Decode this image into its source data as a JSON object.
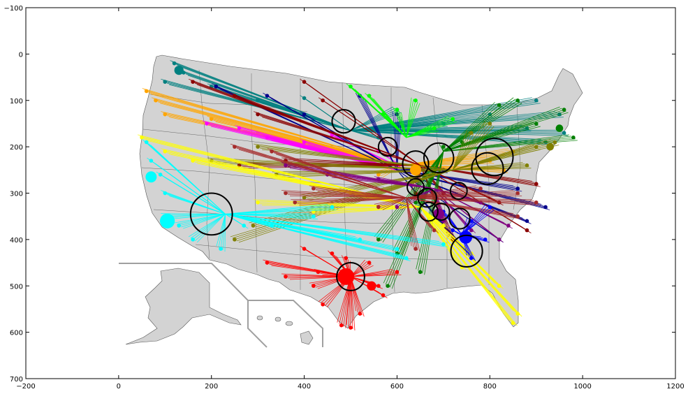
{
  "chart_data": {
    "type": "scatter",
    "title": "",
    "xlabel": "",
    "ylabel": "",
    "xlim": [
      -200,
      1200
    ],
    "ylim": [
      700,
      -100
    ],
    "y_inverted": true,
    "grid": false,
    "x_ticks": [
      -200,
      0,
      200,
      400,
      600,
      800,
      1000,
      1200
    ],
    "y_ticks": [
      -100,
      0,
      100,
      200,
      300,
      400,
      500,
      600,
      700
    ],
    "colors": {
      "map_fill": "#d3d3d3",
      "map_edge": "#555555",
      "inset_frame": "#a0a0a0",
      "hub_ring": "#000000"
    },
    "hubs": [
      {
        "x": 485,
        "y": 145,
        "r": 25
      },
      {
        "x": 580,
        "y": 200,
        "r": 20
      },
      {
        "x": 640,
        "y": 237,
        "r": 28
      },
      {
        "x": 690,
        "y": 224,
        "r": 32
      },
      {
        "x": 810,
        "y": 222,
        "r": 40
      },
      {
        "x": 795,
        "y": 247,
        "r": 34
      },
      {
        "x": 640,
        "y": 287,
        "r": 18
      },
      {
        "x": 733,
        "y": 295,
        "r": 18
      },
      {
        "x": 665,
        "y": 310,
        "r": 20
      },
      {
        "x": 200,
        "y": 345,
        "r": 45
      },
      {
        "x": 668,
        "y": 340,
        "r": 20
      },
      {
        "x": 695,
        "y": 340,
        "r": 18
      },
      {
        "x": 735,
        "y": 355,
        "r": 22
      },
      {
        "x": 750,
        "y": 425,
        "r": 34
      },
      {
        "x": 500,
        "y": 480,
        "r": 30
      }
    ],
    "series": [
      {
        "color": "#008080",
        "hub": [
          500,
          165
        ],
        "targets": [
          [
            120,
            20
          ],
          [
            140,
            40
          ],
          [
            100,
            60
          ],
          [
            200,
            70
          ],
          [
            300,
            100
          ],
          [
            600,
            120
          ],
          [
            800,
            130
          ],
          [
            900,
            100
          ],
          [
            950,
            130
          ],
          [
            960,
            170
          ],
          [
            920,
            190
          ],
          [
            880,
            160
          ],
          [
            700,
            150
          ],
          [
            560,
            180
          ],
          [
            400,
            95
          ]
        ]
      },
      {
        "color": "#ffa500",
        "hub": [
          610,
          240
        ],
        "targets": [
          [
            60,
            80
          ],
          [
            80,
            100
          ],
          [
            100,
            130
          ],
          [
            200,
            140
          ],
          [
            300,
            170
          ],
          [
            400,
            200
          ],
          [
            800,
            230
          ],
          [
            850,
            210
          ],
          [
            830,
            250
          ],
          [
            560,
            260
          ]
        ]
      },
      {
        "color": "#ff00ff",
        "hub": [
          640,
          260
        ],
        "targets": [
          [
            190,
            150
          ],
          [
            260,
            160
          ],
          [
            320,
            180
          ],
          [
            400,
            190
          ],
          [
            460,
            175
          ],
          [
            560,
            210
          ]
        ]
      },
      {
        "color": "#00008b",
        "hub": [
          600,
          250
        ],
        "targets": [
          [
            210,
            70
          ],
          [
            320,
            90
          ],
          [
            400,
            130
          ],
          [
            520,
            90
          ],
          [
            600,
            130
          ],
          [
            700,
            250
          ],
          [
            860,
            290
          ],
          [
            880,
            360
          ],
          [
            820,
            400
          ],
          [
            760,
            440
          ],
          [
            920,
            330
          ]
        ]
      },
      {
        "color": "#8b0000",
        "hub": [
          650,
          240
        ],
        "targets": [
          [
            160,
            60
          ],
          [
            250,
            90
          ],
          [
            300,
            130
          ],
          [
            400,
            60
          ],
          [
            440,
            100
          ],
          [
            360,
            230
          ],
          [
            260,
            240
          ],
          [
            700,
            300
          ],
          [
            820,
            320
          ],
          [
            900,
            280
          ],
          [
            880,
            380
          ],
          [
            640,
            300
          ],
          [
            720,
            400
          ]
        ]
      },
      {
        "color": "#00ff00",
        "hub": [
          620,
          180
        ],
        "targets": [
          [
            500,
            70
          ],
          [
            540,
            90
          ],
          [
            600,
            120
          ],
          [
            640,
            100
          ],
          [
            680,
            160
          ],
          [
            720,
            140
          ],
          [
            570,
            130
          ]
        ]
      },
      {
        "color": "#008000",
        "hub": [
          700,
          210
        ],
        "targets": [
          [
            560,
            400
          ],
          [
            600,
            430
          ],
          [
            650,
            470
          ],
          [
            700,
            200
          ],
          [
            740,
            190
          ],
          [
            820,
            110
          ],
          [
            860,
            100
          ],
          [
            900,
            150
          ],
          [
            960,
            120
          ],
          [
            980,
            180
          ],
          [
            640,
            320
          ],
          [
            580,
            500
          ]
        ]
      },
      {
        "color": "#808000",
        "hub": [
          720,
          250
        ],
        "targets": [
          [
            200,
            230
          ],
          [
            300,
            200
          ],
          [
            340,
            260
          ],
          [
            290,
            370
          ],
          [
            250,
            400
          ],
          [
            400,
            310
          ],
          [
            760,
            170
          ],
          [
            800,
            150
          ],
          [
            900,
            200
          ],
          [
            940,
            190
          ],
          [
            880,
            240
          ]
        ]
      },
      {
        "color": "#ffff00",
        "hub": [
          650,
          330
        ],
        "targets": [
          [
            50,
            180
          ],
          [
            100,
            210
          ],
          [
            160,
            230
          ],
          [
            300,
            320
          ],
          [
            420,
            340
          ],
          [
            500,
            300
          ],
          [
            700,
            370
          ],
          [
            760,
            430
          ],
          [
            820,
            500
          ],
          [
            860,
            560
          ],
          [
            850,
            580
          ],
          [
            740,
            460
          ]
        ]
      },
      {
        "color": "#00ffff",
        "hub": [
          230,
          345
        ],
        "targets": [
          [
            60,
            190
          ],
          [
            70,
            230
          ],
          [
            90,
            260
          ],
          [
            100,
            300
          ],
          [
            100,
            350
          ],
          [
            130,
            370
          ],
          [
            160,
            400
          ],
          [
            220,
            420
          ],
          [
            270,
            370
          ],
          [
            330,
            370
          ],
          [
            420,
            350
          ],
          [
            460,
            330
          ],
          [
            520,
            400
          ],
          [
            600,
            420
          ],
          [
            620,
            440
          ],
          [
            700,
            410
          ]
        ]
      },
      {
        "color": "#800080",
        "hub": [
          680,
          290
        ],
        "targets": [
          [
            360,
            240
          ],
          [
            450,
            260
          ],
          [
            560,
            270
          ],
          [
            600,
            330
          ],
          [
            700,
            360
          ],
          [
            760,
            380
          ],
          [
            820,
            400
          ],
          [
            840,
            370
          ],
          [
            780,
            320
          ]
        ]
      },
      {
        "color": "#a52a2a",
        "hub": [
          620,
          310
        ],
        "targets": [
          [
            250,
            200
          ],
          [
            330,
            210
          ],
          [
            360,
            300
          ],
          [
            380,
            320
          ],
          [
            420,
            290
          ],
          [
            560,
            330
          ],
          [
            640,
            420
          ],
          [
            680,
            380
          ],
          [
            780,
            290
          ],
          [
            860,
            300
          ],
          [
            900,
            320
          ],
          [
            860,
            350
          ]
        ]
      },
      {
        "color": "#ff0000",
        "hub": [
          500,
          480
        ],
        "targets": [
          [
            320,
            450
          ],
          [
            360,
            480
          ],
          [
            400,
            420
          ],
          [
            420,
            500
          ],
          [
            440,
            540
          ],
          [
            480,
            585
          ],
          [
            500,
            590
          ],
          [
            520,
            560
          ],
          [
            560,
            500
          ],
          [
            570,
            520
          ],
          [
            540,
            450
          ],
          [
            600,
            470
          ],
          [
            490,
            440
          ],
          [
            460,
            430
          ],
          [
            430,
            470
          ]
        ]
      },
      {
        "color": "#0000ff",
        "hub": [
          740,
          390
        ],
        "targets": [
          [
            700,
            340
          ],
          [
            760,
            360
          ],
          [
            790,
            400
          ],
          [
            760,
            440
          ],
          [
            720,
            380
          ],
          [
            800,
            330
          ]
        ]
      }
    ],
    "large_markers": [
      {
        "color": "#00ffff",
        "x": 105,
        "y": 360,
        "r": 16
      },
      {
        "color": "#00ffff",
        "x": 70,
        "y": 265,
        "r": 12
      },
      {
        "color": "#008080",
        "x": 130,
        "y": 35,
        "r": 10
      },
      {
        "color": "#ff0000",
        "x": 490,
        "y": 480,
        "r": 18
      },
      {
        "color": "#ff0000",
        "x": 545,
        "y": 500,
        "r": 10
      },
      {
        "color": "#008000",
        "x": 950,
        "y": 160,
        "r": 8
      },
      {
        "color": "#808000",
        "x": 930,
        "y": 200,
        "r": 8
      },
      {
        "color": "#ffa500",
        "x": 640,
        "y": 250,
        "r": 12
      },
      {
        "color": "#0000ff",
        "x": 748,
        "y": 395,
        "r": 14
      },
      {
        "color": "#800080",
        "x": 690,
        "y": 345,
        "r": 12
      }
    ]
  }
}
